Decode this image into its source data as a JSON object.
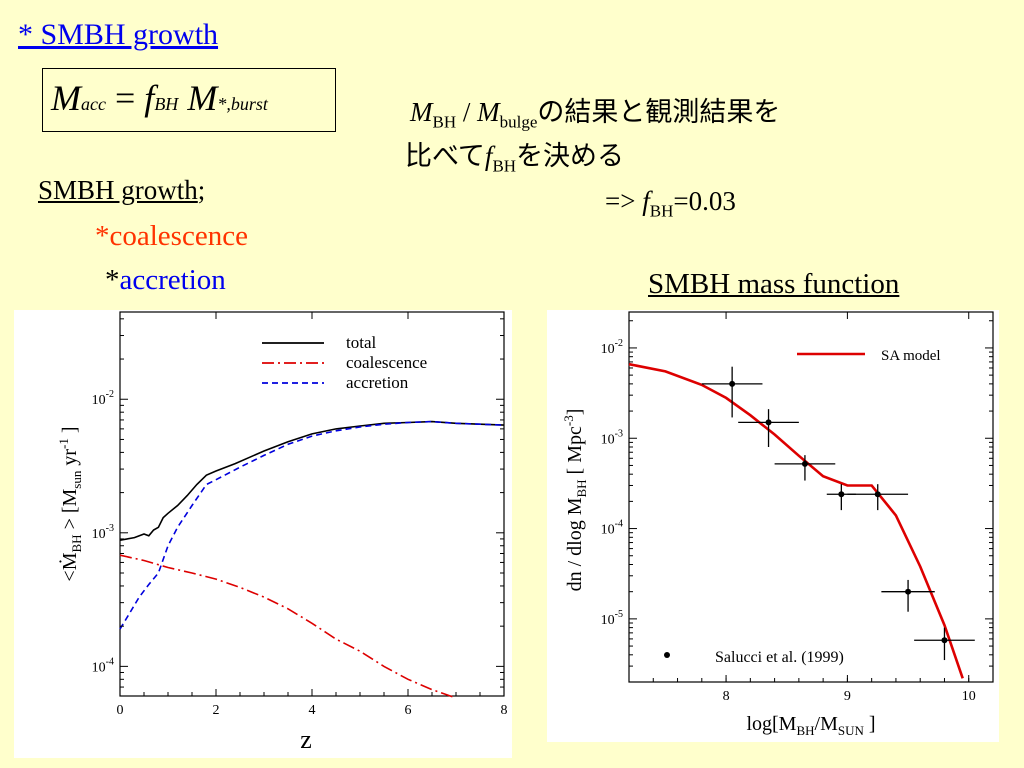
{
  "slide": {
    "title": "* SMBH growth",
    "formula": {
      "m": "M",
      "acc": "acc",
      "eq": "=",
      "f": "f",
      "bh": "BH",
      "mstar": "M",
      "burst": "*,burst"
    },
    "note": {
      "m1": "M",
      "bh": "BH",
      "slash": " / ",
      "m2": "M",
      "bulge": "bulge",
      "line1_tail": "の結果と観測結果を",
      "line2_head": "比べて",
      "f": "f",
      "bh2": "BH",
      "line2_tail": "を決める",
      "arrow": "=>  ",
      "f3": "f",
      "bh3": "BH",
      "val": "=0.03"
    },
    "growth_heading": "SMBH growth",
    "growth_semicolon": ";",
    "item_coalescence": "*coalescence",
    "item_accretion_star": "*",
    "item_accretion": "accretion",
    "mass_function_title": "SMBH mass function"
  },
  "chart_data": [
    {
      "type": "line",
      "xlabel": "z",
      "ylabel_parts": {
        "lt": "<",
        "mdot": "Ṁ",
        "bh": "BH",
        "gt": " > [M",
        "sun": "sun",
        "yr": " yr",
        "exp": "-1",
        "end": " ]"
      },
      "xlim": [
        0,
        8
      ],
      "ylim": [
        6e-05,
        0.045
      ],
      "yscale": "log",
      "xticks": [
        "0",
        "2",
        "4",
        "6",
        "8"
      ],
      "yticks": [
        {
          "v": 0.01,
          "base": "10",
          "exp": "-2"
        },
        {
          "v": 0.001,
          "base": "10",
          "exp": "-3"
        },
        {
          "v": 0.0001,
          "base": "10",
          "exp": "-4"
        }
      ],
      "legend_position": "top-right",
      "series": [
        {
          "name": "total",
          "color": "#000000",
          "dash": "solid",
          "x": [
            0,
            0.3,
            0.5,
            0.6,
            0.7,
            0.8,
            0.9,
            1.0,
            1.2,
            1.4,
            1.6,
            1.8,
            2.0,
            2.4,
            3.0,
            3.5,
            4.0,
            4.5,
            5.0,
            5.5,
            6.0,
            6.5,
            7.0,
            7.5,
            8.0
          ],
          "y": [
            0.00088,
            0.00092,
            0.00098,
            0.00095,
            0.00105,
            0.0011,
            0.0013,
            0.0014,
            0.0016,
            0.0019,
            0.0023,
            0.0027,
            0.0029,
            0.0033,
            0.0041,
            0.0048,
            0.0055,
            0.006,
            0.0063,
            0.0066,
            0.0067,
            0.0068,
            0.0066,
            0.0065,
            0.0064
          ]
        },
        {
          "name": "coalescence",
          "color": "#dd0000",
          "dash": "dashdot",
          "x": [
            0,
            0.5,
            1.0,
            1.5,
            2.0,
            2.5,
            3.0,
            3.5,
            4.0,
            4.5,
            5.0,
            5.5,
            6.0,
            6.5,
            7.0
          ],
          "y": [
            0.00068,
            0.00062,
            0.00055,
            0.0005,
            0.00045,
            0.00039,
            0.00033,
            0.00027,
            0.00021,
            0.00016,
            0.00013,
            0.0001,
            8e-05,
            6.7e-05,
            5.8e-05
          ]
        },
        {
          "name": "accretion",
          "color": "#0000dd",
          "dash": "dashed",
          "x": [
            0,
            0.2,
            0.4,
            0.6,
            0.8,
            1.0,
            1.2,
            1.5,
            1.8,
            2.0,
            2.5,
            3.0,
            3.5,
            4.0,
            4.5,
            5.0,
            5.5,
            6.0,
            6.5,
            7.0,
            7.5,
            8.0
          ],
          "y": [
            0.00019,
            0.00025,
            0.00033,
            0.00041,
            0.0005,
            0.0008,
            0.0011,
            0.0016,
            0.0023,
            0.0025,
            0.0031,
            0.0038,
            0.0046,
            0.0053,
            0.0058,
            0.0062,
            0.0065,
            0.0067,
            0.0068,
            0.0066,
            0.0065,
            0.0064
          ]
        }
      ]
    },
    {
      "type": "line",
      "xlabel_parts": {
        "a": "log[M",
        "bh": "BH",
        "slash": "/M",
        "sun": "SUN",
        "end": " ]"
      },
      "ylabel_parts": {
        "a": "dn / dlog M",
        "bh": "BH",
        "b": "  [ Mpc",
        "exp": "-3",
        "end": "]"
      },
      "xlim": [
        7.2,
        10.2
      ],
      "ylim": [
        2e-06,
        0.025
      ],
      "yscale": "log",
      "xticks": [
        "8",
        "9",
        "10"
      ],
      "yticks": [
        {
          "v": 0.01,
          "base": "10",
          "exp": "-2"
        },
        {
          "v": 0.001,
          "base": "10",
          "exp": "-3"
        },
        {
          "v": 0.0001,
          "base": "10",
          "exp": "-4"
        },
        {
          "v": 1e-05,
          "base": "10",
          "exp": "-5"
        }
      ],
      "legend_position": "top-right",
      "series": [
        {
          "name": "SA model",
          "color": "#dd0000",
          "x": [
            7.2,
            7.5,
            7.8,
            8.0,
            8.2,
            8.4,
            8.6,
            8.8,
            9.0,
            9.2,
            9.4,
            9.6,
            9.8,
            9.95
          ],
          "y": [
            0.0066,
            0.0055,
            0.0039,
            0.0028,
            0.0018,
            0.0011,
            0.00064,
            0.00038,
            0.0003,
            0.0003,
            0.00014,
            3.8e-05,
            8.5e-06,
            2.2e-06
          ]
        },
        {
          "name": "Salucci et al. (1999)",
          "kind": "points",
          "x": [
            8.05,
            8.35,
            8.65,
            8.95,
            9.25,
            9.5,
            9.8
          ],
          "y": [
            0.004,
            0.0015,
            0.00052,
            0.00024,
            0.00024,
            2e-05,
            5.8e-06
          ],
          "xerr": [
            0.25,
            0.25,
            0.25,
            0.12,
            0.25,
            0.22,
            0.25
          ],
          "yerr_low": [
            0.0023,
            0.0007,
            0.00018,
            8e-05,
            8e-05,
            8e-06,
            2.3e-06
          ],
          "yerr_high": [
            0.0022,
            0.0006,
            0.00013,
            7e-05,
            7e-05,
            7e-06,
            2.2e-06
          ]
        }
      ]
    }
  ]
}
